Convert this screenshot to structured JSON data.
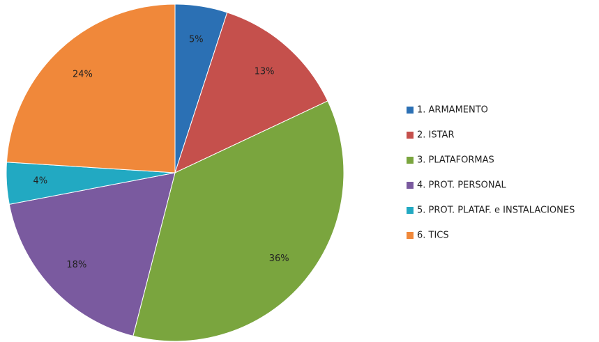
{
  "chart_data": {
    "type": "pie",
    "categories": [
      "1. ARMAMENTO",
      "2. ISTAR",
      "3. PLATAFORMAS",
      "4. PROT. PERSONAL",
      "5. PROT. PLATAF. e INSTALACIONES",
      "6. TICS"
    ],
    "values": [
      5,
      13,
      36,
      18,
      4,
      24
    ],
    "value_labels": [
      "5%",
      "13%",
      "36%",
      "18%",
      "4%",
      "24%"
    ],
    "colors": [
      "#2b70b4",
      "#c5504c",
      "#7aa53e",
      "#7a5a9f",
      "#22a9c2",
      "#f0883a"
    ],
    "legend": "right"
  }
}
